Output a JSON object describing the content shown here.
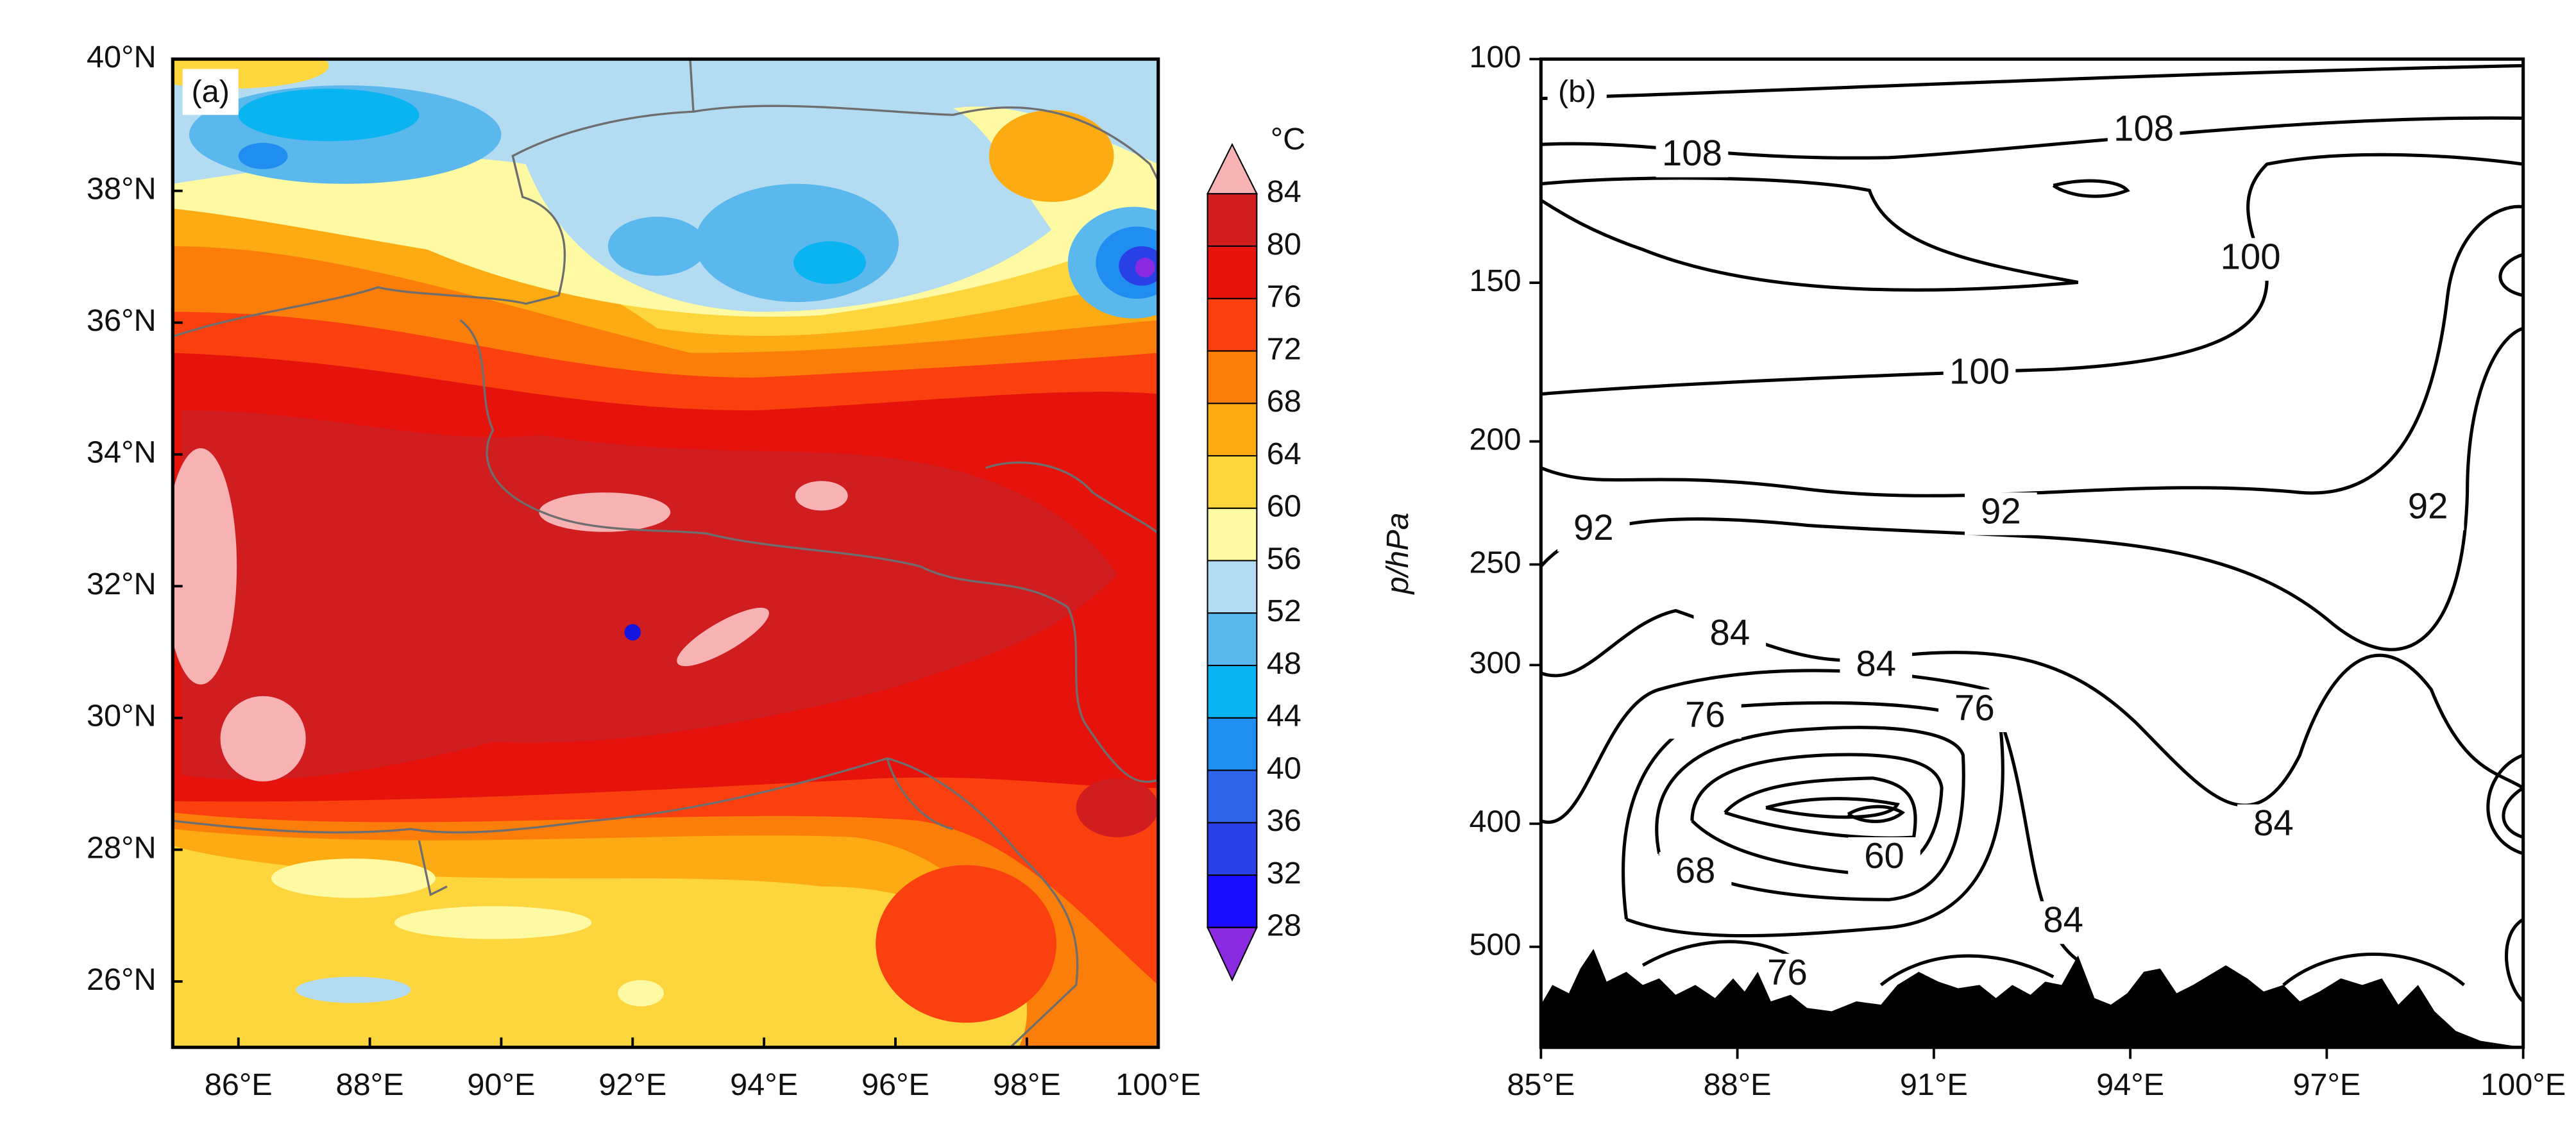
{
  "chart_data": [
    {
      "type": "contourf",
      "panel_label": "(a)",
      "xlim": [
        85,
        100
      ],
      "xticks": [
        {
          "value": 86,
          "label": "86°E"
        },
        {
          "value": 88,
          "label": "88°E"
        },
        {
          "value": 90,
          "label": "90°E"
        },
        {
          "value": 92,
          "label": "92°E"
        },
        {
          "value": 94,
          "label": "94°E"
        },
        {
          "value": 96,
          "label": "96°E"
        },
        {
          "value": 98,
          "label": "98°E"
        },
        {
          "value": 100,
          "label": "100°E"
        }
      ],
      "ylim": [
        25,
        40
      ],
      "yticks": [
        {
          "value": 26,
          "label": "26°N"
        },
        {
          "value": 28,
          "label": "28°N"
        },
        {
          "value": 30,
          "label": "30°N"
        },
        {
          "value": 32,
          "label": "32°N"
        },
        {
          "value": 34,
          "label": "34°N"
        },
        {
          "value": 36,
          "label": "36°N"
        },
        {
          "value": 38,
          "label": "38°N"
        },
        {
          "value": 40,
          "label": "40°N"
        }
      ],
      "colorbar": {
        "unit": "°C",
        "levels": [
          28,
          32,
          36,
          40,
          44,
          48,
          52,
          56,
          60,
          64,
          68,
          72,
          76,
          80,
          84
        ],
        "colors": [
          "#8a2be2",
          "#1a0dff",
          "#2840e6",
          "#2f63e8",
          "#1f8ef0",
          "#0ab4f0",
          "#5bb8ec",
          "#b3dbf2",
          "#fefaa3",
          "#fdd53d",
          "#fcac12",
          "#fb7d0a",
          "#fb400f",
          "#e6130c",
          "#cf1d20",
          "#f7b2b4"
        ]
      },
      "marker_color": "#1515e0"
    },
    {
      "type": "contour",
      "panel_label": "(b)",
      "ylabel": "p/hPa",
      "xlim": [
        85,
        100
      ],
      "xticks": [
        {
          "value": 85,
          "label": "85°E"
        },
        {
          "value": 88,
          "label": "88°E"
        },
        {
          "value": 91,
          "label": "91°E"
        },
        {
          "value": 94,
          "label": "94°E"
        },
        {
          "value": 97,
          "label": "97°E"
        },
        {
          "value": 100,
          "label": "100°E"
        }
      ],
      "ylim": [
        100,
        600
      ],
      "ylog": true,
      "yinverted": true,
      "yticks": [
        100,
        150,
        200,
        250,
        300,
        400,
        500
      ],
      "contour_labels": [
        108,
        108,
        100,
        100,
        92,
        92,
        92,
        84,
        84,
        76,
        76,
        68,
        60,
        84,
        84,
        76
      ],
      "line_color": "#000000",
      "terrain_color": "#000000"
    }
  ]
}
